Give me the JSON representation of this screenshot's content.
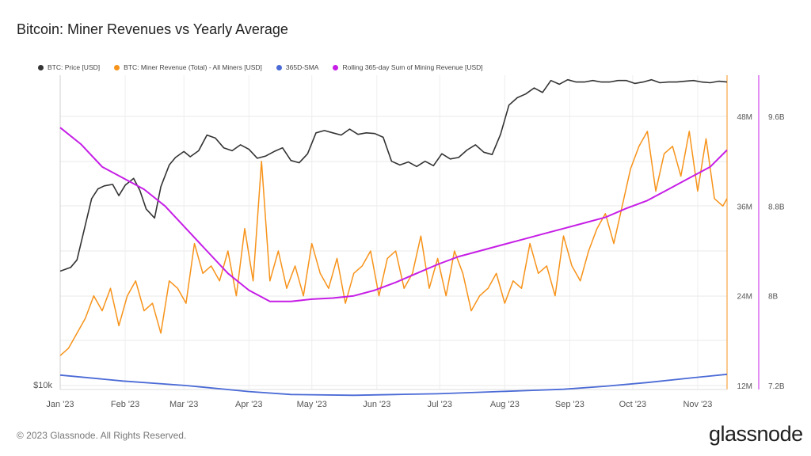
{
  "title": "Bitcoin: Miner Revenues vs Yearly Average",
  "footer": "© 2023 Glassnode. All Rights Reserved.",
  "brand": "glassnode",
  "legend": [
    {
      "label": "BTC: Price [USD]",
      "color": "#333333"
    },
    {
      "label": "BTC: Miner Revenue (Total) - All Miners [USD]",
      "color": "#f7931a"
    },
    {
      "label": "365D-SMA",
      "color": "#4a6ad6"
    },
    {
      "label": "Rolling 365-day Sum of Mining Revenue [USD]",
      "color": "#c61ee6"
    }
  ],
  "chart_data": {
    "type": "line",
    "x_axis": {
      "ticks": [
        "Jan '23",
        "Feb '23",
        "Mar '23",
        "Apr '23",
        "May '23",
        "Jun '23",
        "Jul '23",
        "Aug '23",
        "Sep '23",
        "Oct '23",
        "Nov '23"
      ]
    },
    "y_axis_left": {
      "ticks": [
        "$10k"
      ]
    },
    "y_axis_revenue": {
      "ticks": [
        "12M",
        "24M",
        "36M",
        "48M"
      ],
      "range": [
        12,
        48
      ]
    },
    "y_axis_sum": {
      "ticks": [
        "7.2B",
        "8B",
        "8.8B",
        "9.6B"
      ],
      "range": [
        7.2,
        9.6
      ]
    },
    "grid": true,
    "series": [
      {
        "name": "BTC: Price [USD]",
        "color": "#333333",
        "x": [
          0,
          5,
          8,
          12,
          15,
          18,
          21,
          25,
          28,
          31,
          35,
          38,
          41,
          45,
          48,
          52,
          55,
          59,
          62,
          66,
          70,
          74,
          78,
          82,
          86,
          90,
          94,
          98,
          102,
          106,
          110,
          114,
          118,
          122,
          126,
          130,
          134,
          138,
          142,
          146,
          150,
          154,
          158,
          162,
          166,
          170,
          174,
          178,
          182,
          186,
          190,
          194,
          198,
          202,
          206,
          210,
          214,
          218,
          222,
          226,
          230,
          234,
          238,
          242,
          246,
          250,
          254,
          258,
          262,
          266,
          270,
          274,
          278,
          282,
          286,
          290,
          294,
          298,
          302,
          306,
          310,
          314,
          318
        ],
        "values": [
          27.3,
          27.8,
          28.8,
          33.5,
          37,
          38.3,
          38.7,
          38.9,
          37.4,
          38.8,
          39.7,
          38.1,
          35.6,
          34.4,
          38.6,
          41.5,
          42.5,
          43.3,
          42.6,
          43.4,
          45.5,
          45.1,
          43.8,
          43.4,
          44.2,
          43.6,
          42.4,
          42.7,
          43.3,
          43.8,
          42.1,
          41.8,
          43.0,
          45.8,
          46.1,
          45.8,
          45.5,
          46.3,
          45.6,
          45.8,
          45.7,
          45.2,
          42.0,
          41.5,
          41.9,
          41.3,
          42.0,
          41.4,
          43.0,
          42.3,
          42.5,
          43.5,
          44.2,
          43.2,
          42.9,
          45.6,
          49.5,
          50.5,
          51.0,
          51.8,
          51.2,
          52.8,
          52.3,
          52.9,
          52.6,
          52.6,
          52.8,
          52.6,
          52.6,
          52.8,
          52.8,
          52.4,
          52.6,
          52.9,
          52.5,
          52.6,
          52.6,
          52.7,
          52.8,
          52.6,
          52.5,
          52.7,
          52.6
        ]
      },
      {
        "name": "BTC: Miner Revenue (Total) - All Miners [USD]",
        "color": "#f7931a",
        "x": [
          0,
          4,
          8,
          12,
          16,
          20,
          24,
          28,
          32,
          36,
          40,
          44,
          48,
          52,
          56,
          60,
          64,
          68,
          72,
          76,
          80,
          84,
          88,
          92,
          96,
          100,
          104,
          108,
          112,
          116,
          120,
          124,
          128,
          132,
          136,
          140,
          144,
          148,
          152,
          156,
          160,
          164,
          168,
          172,
          176,
          180,
          184,
          188,
          192,
          196,
          200,
          204,
          208,
          212,
          216,
          220,
          224,
          228,
          232,
          236,
          240,
          244,
          248,
          252,
          256,
          260,
          264,
          268,
          272,
          276,
          280,
          284,
          288,
          292,
          296,
          300,
          304,
          308,
          312,
          316,
          318
        ],
        "values": [
          16,
          17,
          19,
          21,
          24,
          22,
          25,
          20,
          24,
          26,
          22,
          23,
          19,
          26,
          25,
          23,
          31,
          27,
          28,
          26,
          30,
          24,
          33,
          26,
          42,
          26,
          30,
          25,
          28,
          24,
          31,
          27,
          25,
          29,
          23,
          27,
          28,
          30,
          24,
          29,
          30,
          25,
          27,
          32,
          25,
          29,
          24,
          30,
          27,
          22,
          24,
          25,
          27,
          23,
          26,
          25,
          31,
          27,
          28,
          24,
          32,
          28,
          26,
          30,
          33,
          35,
          31,
          36,
          41,
          44,
          46,
          38,
          43,
          44,
          40,
          46,
          38,
          45,
          37,
          36,
          37
        ]
      },
      {
        "name": "365D-SMA",
        "color": "#4a6ad6",
        "x": [
          0,
          30,
          60,
          90,
          110,
          140,
          160,
          180,
          200,
          220,
          240,
          260,
          280,
          300,
          318
        ],
        "values": [
          13.4,
          12.6,
          12.0,
          11.2,
          10.8,
          10.7,
          10.8,
          10.9,
          11.1,
          11.3,
          11.5,
          11.9,
          12.4,
          13.0,
          13.5
        ]
      },
      {
        "name": "Rolling 365-day Sum of Mining Revenue [USD]",
        "color": "#c61ee6",
        "x": [
          0,
          10,
          20,
          30,
          40,
          50,
          60,
          70,
          80,
          90,
          100,
          110,
          120,
          130,
          140,
          150,
          160,
          170,
          180,
          190,
          200,
          210,
          220,
          230,
          240,
          250,
          260,
          270,
          280,
          290,
          300,
          310,
          318
        ],
        "values": [
          9.5,
          9.35,
          9.15,
          9.05,
          8.95,
          8.8,
          8.6,
          8.4,
          8.2,
          8.05,
          7.95,
          7.95,
          7.97,
          7.98,
          8.0,
          8.05,
          8.12,
          8.2,
          8.28,
          8.35,
          8.4,
          8.45,
          8.5,
          8.55,
          8.6,
          8.65,
          8.7,
          8.78,
          8.85,
          8.95,
          9.05,
          9.15,
          9.3
        ]
      }
    ]
  }
}
